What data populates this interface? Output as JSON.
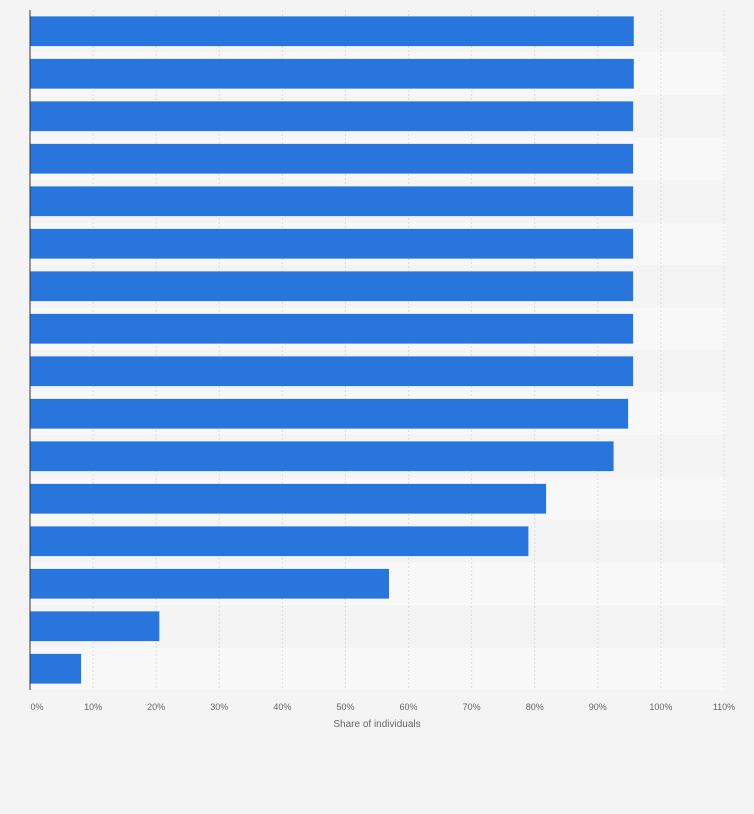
{
  "chart_data": {
    "type": "bar",
    "orientation": "horizontal",
    "categories": [
      "",
      "",
      "",
      "",
      "",
      "",
      "",
      "",
      "",
      "",
      "",
      "",
      "",
      "",
      "",
      ""
    ],
    "values": [
      95.7,
      95.7,
      95.6,
      95.6,
      95.6,
      95.6,
      95.6,
      95.6,
      95.6,
      94.8,
      92.5,
      81.8,
      79.0,
      56.9,
      20.5,
      8.1
    ],
    "xlim": [
      0,
      110
    ],
    "xticks": [
      0,
      10,
      20,
      30,
      40,
      50,
      60,
      70,
      80,
      90,
      100,
      110
    ],
    "xtick_labels": [
      "0%",
      "10%",
      "20%",
      "30%",
      "40%",
      "50%",
      "60%",
      "70%",
      "80%",
      "90%",
      "100%",
      "110%"
    ],
    "xlabel": "Share of individuals",
    "ylabel": "",
    "title": "",
    "grid": true,
    "bar_color": "#2876dd",
    "band_colors": [
      "#f4f4f4",
      "#f8f8f8"
    ],
    "axis_color": "#333333",
    "grid_color": "#dcdcdc",
    "label_color": "#666666"
  }
}
